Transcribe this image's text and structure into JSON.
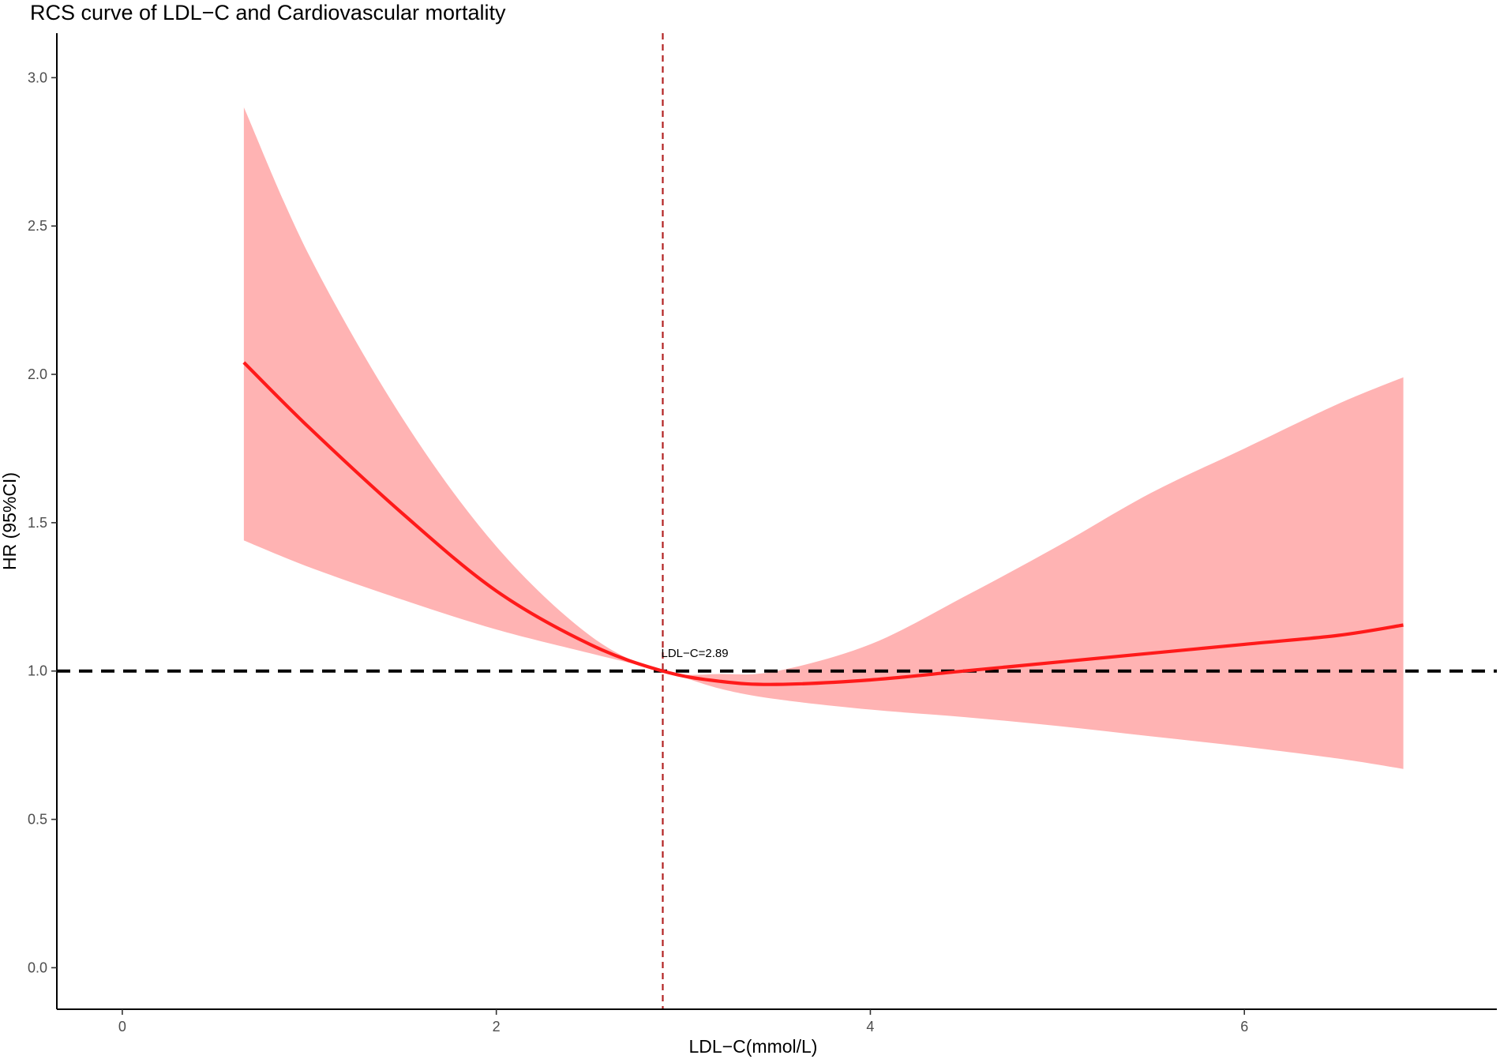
{
  "chart_data": {
    "type": "line",
    "title": "RCS curve of LDL−C and Cardiovascular mortality",
    "xlabel": "LDL−C(mmol/L)",
    "ylabel": "HR (95%CI)",
    "xlim": [
      -0.35,
      7.35
    ],
    "ylim": [
      -0.14,
      3.15
    ],
    "x_ticks": [
      0,
      2,
      4,
      6
    ],
    "y_ticks": [
      0.0,
      0.5,
      1.0,
      1.5,
      2.0,
      2.5,
      3.0
    ],
    "x_tick_labels": [
      "0",
      "2",
      "4",
      "6"
    ],
    "y_tick_labels": [
      "0.0",
      "0.5",
      "1.0",
      "1.5",
      "2.0",
      "2.5",
      "3.0"
    ],
    "grid": false,
    "series": [
      {
        "role": "estimate",
        "color": "#ff1a1a",
        "x": [
          0.65,
          1.0,
          1.5,
          2.0,
          2.5,
          2.89,
          3.2,
          3.5,
          4.0,
          4.5,
          5.0,
          5.5,
          6.0,
          6.5,
          6.85
        ],
        "y": [
          2.04,
          1.82,
          1.53,
          1.27,
          1.09,
          1.0,
          0.965,
          0.955,
          0.97,
          1.0,
          1.03,
          1.06,
          1.09,
          1.12,
          1.155
        ]
      }
    ],
    "ci_band": {
      "color": "#ffb3b3",
      "x": [
        0.65,
        1.0,
        1.5,
        2.0,
        2.5,
        2.89,
        3.2,
        3.5,
        4.0,
        4.5,
        5.0,
        5.5,
        6.0,
        6.5,
        6.85
      ],
      "lower": [
        1.44,
        1.35,
        1.24,
        1.14,
        1.06,
        1.0,
        0.94,
        0.905,
        0.87,
        0.845,
        0.815,
        0.78,
        0.745,
        0.705,
        0.67
      ],
      "upper": [
        2.9,
        2.4,
        1.85,
        1.42,
        1.12,
        1.0,
        0.99,
        1.0,
        1.09,
        1.25,
        1.42,
        1.6,
        1.75,
        1.9,
        1.99
      ]
    },
    "reference_lines": [
      {
        "orientation": "horizontal",
        "value": 1.0,
        "style": "dashed",
        "color": "#000000"
      },
      {
        "orientation": "vertical",
        "value": 2.89,
        "style": "dashed",
        "color": "#b22222"
      }
    ],
    "annotations": [
      {
        "text": "LDL−C=2.89",
        "x": 2.89,
        "y": 1.06
      }
    ]
  }
}
